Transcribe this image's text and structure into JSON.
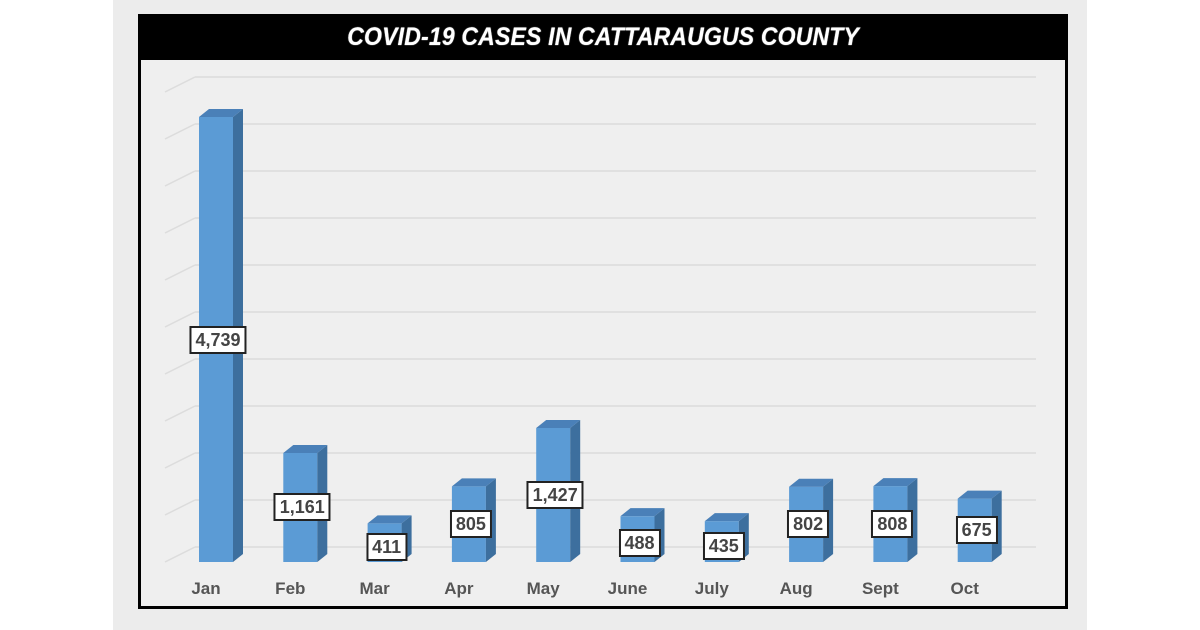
{
  "title": "COVID-19 CASES IN CATTARAUGUS COUNTY",
  "colors": {
    "bar_front": "#5b9bd5",
    "bar_side": "#3d6f9e",
    "bar_top": "#4a80b8",
    "title_bg": "#000000",
    "title_text": "#ffffff",
    "plot_bg": "#efefef",
    "gridline": "#dcdcdc"
  },
  "chart_data": {
    "type": "bar",
    "style": "3d-column",
    "title": "COVID-19 CASES IN CATTARAUGUS COUNTY",
    "xlabel": "",
    "ylabel": "",
    "categories": [
      "Jan",
      "Feb",
      "Mar",
      "Apr",
      "May",
      "June",
      "July",
      "Aug",
      "Sept",
      "Oct"
    ],
    "values": [
      4739,
      1161,
      411,
      805,
      1427,
      488,
      435,
      802,
      808,
      675
    ],
    "value_labels": [
      "4,739",
      "1,161",
      "411",
      "805",
      "1,427",
      "488",
      "435",
      "802",
      "808",
      "675"
    ],
    "grid": true,
    "legend": "none",
    "y_axis_visible": false
  }
}
